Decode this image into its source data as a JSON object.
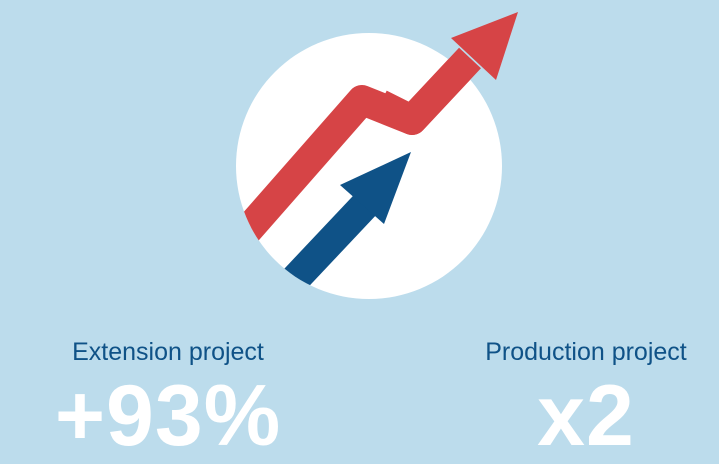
{
  "colors": {
    "background": "#bcdcec",
    "circle": "#ffffff",
    "red_arrow": "#d64446",
    "blue_arrow": "#0f5287",
    "label_text": "#0f5287",
    "value_text": "#ffffff"
  },
  "graphic": {
    "icon": "growth-arrows-icon"
  },
  "stats": {
    "extension": {
      "label": "Extension project",
      "value": "+93%"
    },
    "production": {
      "label": "Production project",
      "value": "x2"
    }
  }
}
